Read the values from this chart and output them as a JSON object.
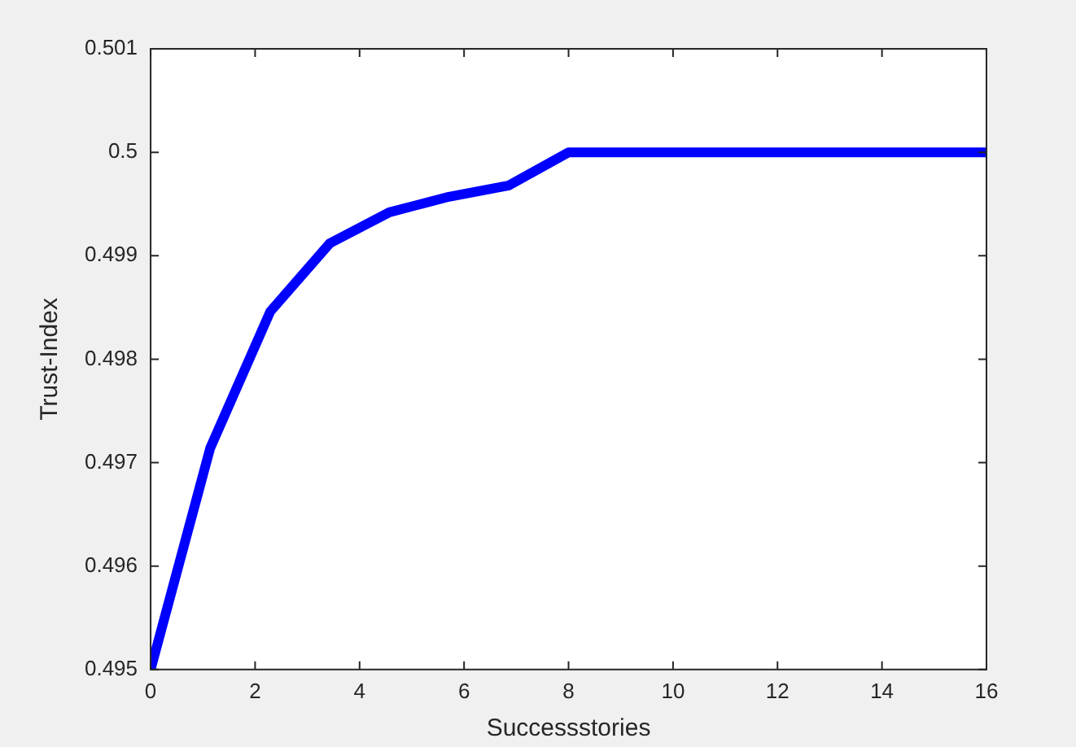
{
  "chart_data": {
    "type": "line",
    "xlabel": "Successstories",
    "ylabel": "Trust-Index",
    "x": [
      0,
      1.14,
      2.29,
      3.43,
      4.57,
      5.71,
      6.86,
      8,
      16
    ],
    "series": [
      {
        "color": "#0000ff",
        "values": [
          0.495,
          0.49714,
          0.49846,
          0.49912,
          0.49942,
          0.49957,
          0.49968,
          0.5,
          0.5
        ]
      }
    ],
    "xlim": [
      0,
      16
    ],
    "xticks": [
      0,
      2,
      4,
      6,
      8,
      10,
      12,
      14,
      16
    ],
    "ylim": [
      0.495,
      0.501
    ],
    "yticks": [
      0.495,
      0.496,
      0.497,
      0.498,
      0.499,
      0.5,
      0.501
    ],
    "grid": false,
    "legend": false,
    "marker": "none",
    "line_style": "solid"
  }
}
